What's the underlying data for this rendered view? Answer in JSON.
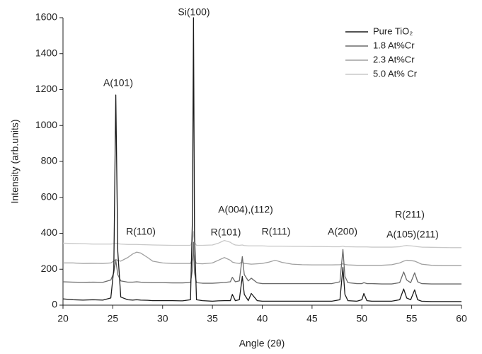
{
  "chart_data": {
    "type": "line",
    "xlabel": "Angle (2θ)",
    "ylabel": "Intensity (arb.units)",
    "xlim": [
      20,
      60
    ],
    "ylim": [
      0,
      1600
    ],
    "xticks": [
      20,
      25,
      30,
      35,
      40,
      45,
      50,
      55,
      60
    ],
    "yticks": [
      0,
      200,
      400,
      600,
      800,
      1000,
      1200,
      1400,
      1600
    ],
    "grid": false,
    "legend": "upper right",
    "annotations": [
      "A(101)",
      "Si(100)",
      "R(110)",
      "A(004),(112)",
      "R(101)",
      "R(111)",
      "A(200)",
      "R(211)",
      "A(105)(211)"
    ],
    "x": [
      20,
      21,
      22,
      23,
      24,
      24.8,
      25.1,
      25.3,
      25.5,
      25.8,
      26.5,
      27,
      27.4,
      27.8,
      28.5,
      29,
      30,
      31,
      32,
      32.8,
      33.0,
      33.1,
      33.2,
      33.4,
      34,
      35,
      35.6,
      36.2,
      36.8,
      37.0,
      37.3,
      37.7,
      38.0,
      38.2,
      38.6,
      38.9,
      39.5,
      40,
      40.7,
      41.3,
      42,
      43,
      44,
      45,
      46,
      47,
      47.8,
      48.1,
      48.3,
      48.6,
      49.5,
      50.0,
      50.2,
      50.5,
      51,
      52,
      53,
      53.8,
      54.2,
      54.5,
      54.9,
      55.3,
      55.6,
      56,
      57,
      58,
      59,
      60
    ],
    "series": [
      {
        "name": "Pure TiO₂",
        "color": "#1a1a1a",
        "values": [
          35,
          30,
          28,
          30,
          28,
          40,
          200,
          1170,
          300,
          45,
          30,
          28,
          30,
          28,
          27,
          25,
          25,
          25,
          24,
          30,
          500,
          1600,
          400,
          30,
          25,
          22,
          24,
          25,
          25,
          60,
          25,
          30,
          160,
          60,
          25,
          65,
          25,
          22,
          22,
          22,
          22,
          22,
          22,
          22,
          22,
          22,
          30,
          210,
          60,
          25,
          22,
          30,
          65,
          25,
          22,
          22,
          22,
          30,
          90,
          40,
          30,
          85,
          30,
          22,
          20,
          20,
          20,
          20
        ]
      },
      {
        "name": "1.8 At%Cr",
        "color": "#6a6a6a",
        "values": [
          130,
          128,
          127,
          128,
          127,
          140,
          180,
          250,
          170,
          135,
          128,
          128,
          130,
          128,
          126,
          125,
          125,
          124,
          124,
          126,
          200,
          350,
          180,
          125,
          122,
          122,
          124,
          126,
          130,
          155,
          130,
          135,
          270,
          170,
          135,
          150,
          124,
          120,
          120,
          120,
          120,
          120,
          120,
          120,
          120,
          120,
          130,
          310,
          160,
          125,
          120,
          120,
          125,
          120,
          120,
          118,
          118,
          125,
          185,
          140,
          125,
          180,
          130,
          120,
          118,
          118,
          118,
          118
        ]
      },
      {
        "name": "2.3 At%Cr",
        "color": "#a0a0a0",
        "values": [
          235,
          235,
          232,
          233,
          232,
          235,
          245,
          255,
          248,
          245,
          265,
          285,
          295,
          290,
          265,
          245,
          235,
          232,
          232,
          232,
          260,
          300,
          255,
          232,
          230,
          235,
          250,
          265,
          250,
          240,
          235,
          232,
          240,
          232,
          230,
          228,
          230,
          232,
          240,
          250,
          238,
          228,
          225,
          224,
          224,
          224,
          225,
          230,
          226,
          224,
          222,
          222,
          222,
          222,
          222,
          222,
          225,
          235,
          245,
          250,
          248,
          245,
          238,
          228,
          222,
          220,
          220,
          220
        ]
      },
      {
        "name": "5.0 At% Cr",
        "color": "#c8c8c8",
        "values": [
          345,
          343,
          342,
          340,
          340,
          340,
          342,
          345,
          342,
          340,
          338,
          338,
          338,
          337,
          336,
          335,
          334,
          333,
          333,
          333,
          360,
          410,
          350,
          333,
          333,
          335,
          345,
          360,
          350,
          342,
          335,
          333,
          335,
          332,
          330,
          330,
          330,
          330,
          328,
          328,
          328,
          327,
          327,
          326,
          326,
          325,
          325,
          328,
          325,
          325,
          324,
          324,
          324,
          324,
          323,
          323,
          323,
          325,
          330,
          332,
          330,
          328,
          325,
          323,
          322,
          321,
          320,
          320
        ]
      }
    ]
  }
}
